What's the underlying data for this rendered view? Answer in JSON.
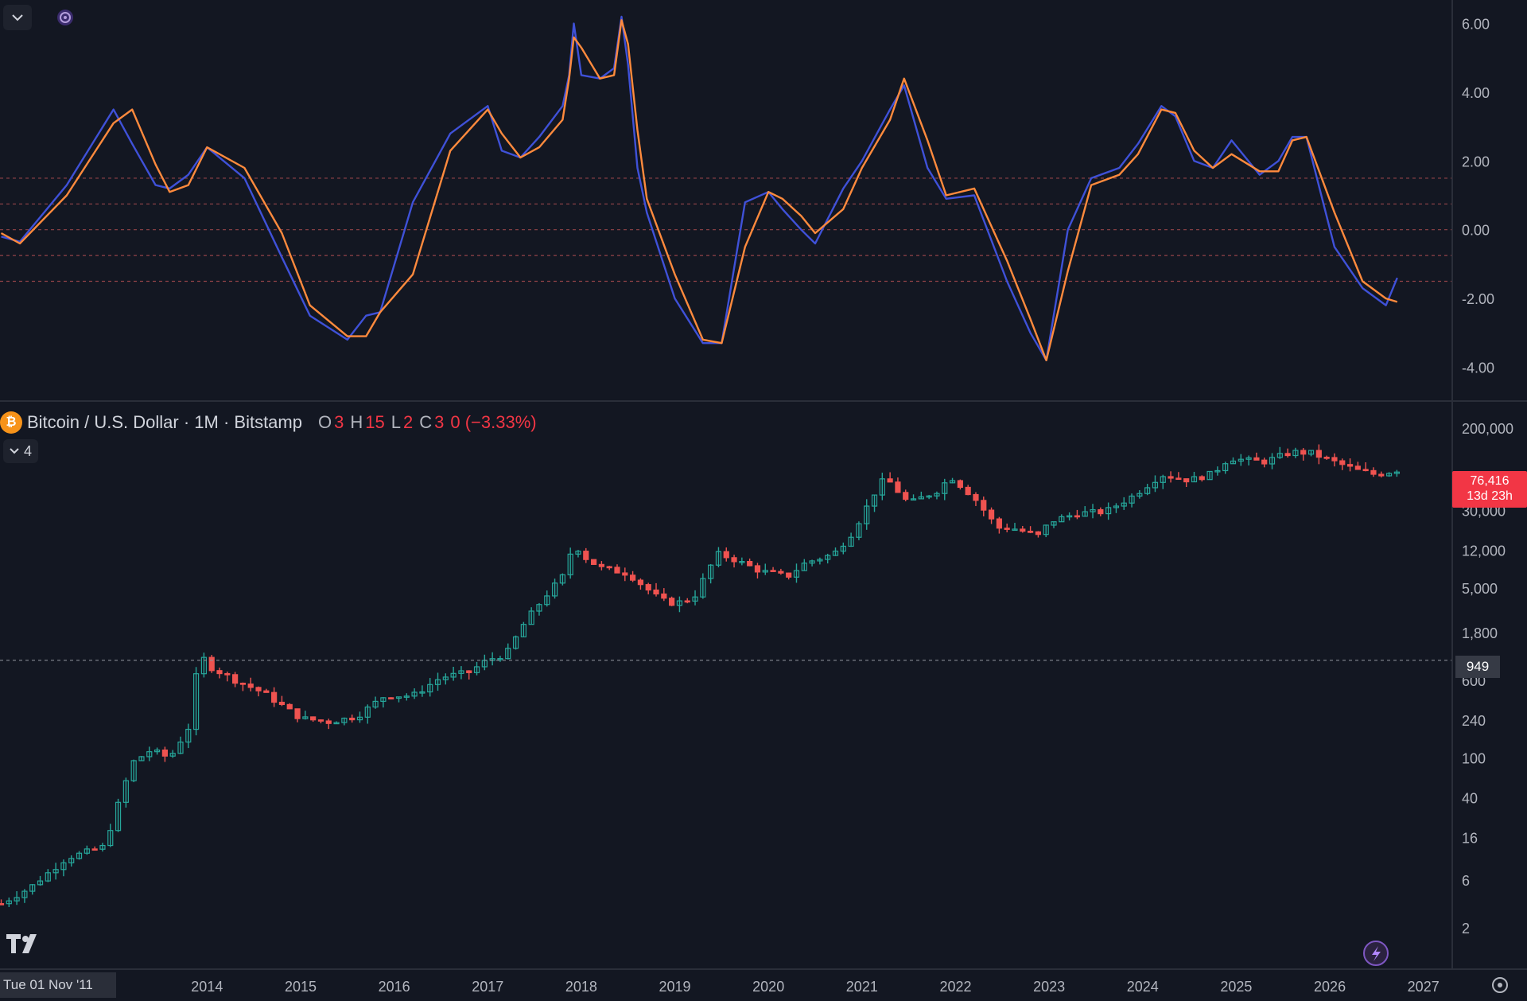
{
  "toolbar": {
    "collapse_icon": "chevron-down-icon",
    "indicator_icon": "indicator-settings-icon"
  },
  "legend": {
    "symbol": "Bitcoin / U.S. Dollar · 1M · Bitstamp",
    "o_label": "O",
    "o_value": "3",
    "h_label": "H",
    "h_value": "15",
    "l_label": "L",
    "l_value": "2",
    "c_label": "C",
    "c_value": "3",
    "change": "0 (−3.33%)",
    "indicator_count": "4"
  },
  "price_tag": {
    "price": "76,416",
    "countdown": "13d 23h"
  },
  "crosshair_price": "949",
  "date_label": "Tue 01 Nov '11",
  "colors": {
    "background": "#131722",
    "up": "#26a69a",
    "down": "#ef5350",
    "osc_fast": "#3f51d8",
    "osc_slow": "#ff8a3d",
    "level_line": "#b24f52"
  },
  "chart_data": [
    {
      "type": "line",
      "panel": "oscillator",
      "yticks": [
        "6.00",
        "4.00",
        "2.00",
        "0.00",
        "-2.00",
        "-4.00"
      ],
      "ylim": [
        -4.8,
        6.5
      ],
      "levels": [
        1.5,
        0.75,
        0,
        -0.75,
        -1.5
      ],
      "x": [
        2011.8,
        2012.0,
        2012.5,
        2013.0,
        2013.2,
        2013.45,
        2013.6,
        2013.8,
        2014.0,
        2014.4,
        2014.8,
        2015.1,
        2015.5,
        2015.7,
        2015.85,
        2016.2,
        2016.6,
        2017.0,
        2017.15,
        2017.35,
        2017.55,
        2017.8,
        2017.87,
        2017.92,
        2018.0,
        2018.2,
        2018.35,
        2018.43,
        2018.5,
        2018.6,
        2018.7,
        2019.0,
        2019.3,
        2019.5,
        2019.75,
        2020.0,
        2020.15,
        2020.35,
        2020.5,
        2020.8,
        2021.0,
        2021.3,
        2021.45,
        2021.7,
        2021.9,
        2022.2,
        2022.55,
        2022.8,
        2022.97,
        2023.2,
        2023.45,
        2023.75,
        2023.95,
        2024.2,
        2024.35,
        2024.55,
        2024.75,
        2024.95,
        2025.25,
        2025.45,
        2025.6,
        2025.75,
        2026.05,
        2026.35,
        2026.6,
        2026.72
      ],
      "series": [
        {
          "values": [
            -0.2,
            -0.35,
            1.3,
            3.5,
            2.5,
            1.3,
            1.2,
            1.6,
            2.4,
            1.5,
            -0.8,
            -2.5,
            -3.2,
            -2.5,
            -2.4,
            0.8,
            2.8,
            3.6,
            2.3,
            2.1,
            2.7,
            3.6,
            4.5,
            6.0,
            4.5,
            4.4,
            4.7,
            6.2,
            4.8,
            1.8,
            0.5,
            -2.0,
            -3.3,
            -3.3,
            0.8,
            1.1,
            0.6,
            0.0,
            -0.4,
            1.2,
            2.0,
            3.5,
            4.2,
            1.8,
            0.9,
            1.0,
            -1.5,
            -3.0,
            -3.8,
            0.0,
            1.5,
            1.8,
            2.5,
            3.6,
            3.3,
            2.0,
            1.8,
            2.6,
            1.6,
            2.0,
            2.7,
            2.7,
            -0.5,
            -1.7,
            -2.2,
            -1.4
          ]
        },
        {
          "values": [
            -0.1,
            -0.4,
            1.0,
            3.1,
            3.5,
            1.9,
            1.1,
            1.3,
            2.4,
            1.8,
            -0.1,
            -2.2,
            -3.1,
            -3.1,
            -2.4,
            -1.3,
            2.3,
            3.5,
            2.8,
            2.1,
            2.4,
            3.2,
            4.4,
            5.6,
            5.3,
            4.4,
            4.5,
            6.1,
            5.4,
            2.9,
            0.9,
            -1.3,
            -3.2,
            -3.3,
            -0.5,
            1.1,
            0.9,
            0.4,
            -0.1,
            0.6,
            1.8,
            3.2,
            4.4,
            2.6,
            1.0,
            1.2,
            -0.9,
            -2.6,
            -3.8,
            -1.2,
            1.3,
            1.6,
            2.2,
            3.5,
            3.4,
            2.3,
            1.8,
            2.2,
            1.7,
            1.7,
            2.6,
            2.7,
            0.5,
            -1.5,
            -2.0,
            -2.1
          ]
        }
      ]
    },
    {
      "type": "candlestick",
      "panel": "price",
      "scale": "log",
      "ylim": [
        1,
        400000
      ],
      "yticks": [
        "200,000",
        "30,000",
        "12,000",
        "5,000",
        "1,800",
        "600",
        "240",
        "100",
        "40",
        "16",
        "6",
        "2"
      ],
      "xticks": [
        "2014",
        "2015",
        "2016",
        "2017",
        "2018",
        "2019",
        "2020",
        "2021",
        "2022",
        "2023",
        "2024",
        "2025",
        "2026",
        "2027"
      ],
      "anchors": {
        "t": [
          2011.8,
          2012.1,
          2012.5,
          2012.9,
          2013.2,
          2013.4,
          2013.6,
          2013.8,
          2013.92,
          2014.05,
          2014.3,
          2014.6,
          2015.0,
          2015.3,
          2015.6,
          2015.9,
          2016.2,
          2016.5,
          2016.8,
          2017.0,
          2017.2,
          2017.4,
          2017.6,
          2017.8,
          2017.92,
          2018.05,
          2018.2,
          2018.5,
          2018.85,
          2019.0,
          2019.2,
          2019.45,
          2019.6,
          2019.9,
          2020.2,
          2020.4,
          2020.7,
          2020.9,
          2021.2,
          2021.3,
          2021.5,
          2021.8,
          2021.95,
          2022.2,
          2022.45,
          2022.6,
          2022.9,
          2023.0,
          2023.3,
          2023.6,
          2023.9,
          2024.2,
          2024.5,
          2024.75,
          2024.92,
          2025.1,
          2025.3,
          2025.6,
          2025.8,
          2026.0,
          2026.3,
          2026.5,
          2026.72
        ],
        "close": [
          3.5,
          5,
          10,
          13,
          90,
          120,
          100,
          200,
          1100,
          800,
          600,
          450,
          250,
          230,
          260,
          420,
          420,
          640,
          720,
          960,
          1100,
          2300,
          4000,
          6500,
          14000,
          10000,
          8000,
          7000,
          3800,
          3500,
          4000,
          11000,
          10000,
          7500,
          6500,
          9000,
          11000,
          18000,
          58000,
          57000,
          35000,
          47000,
          65000,
          40000,
          20000,
          20000,
          16500,
          23000,
          28000,
          29000,
          42000,
          68000,
          60000,
          70000,
          100000,
          95000,
          92000,
          115000,
          112000,
          95000,
          75000,
          68000,
          76000
        ]
      }
    }
  ]
}
